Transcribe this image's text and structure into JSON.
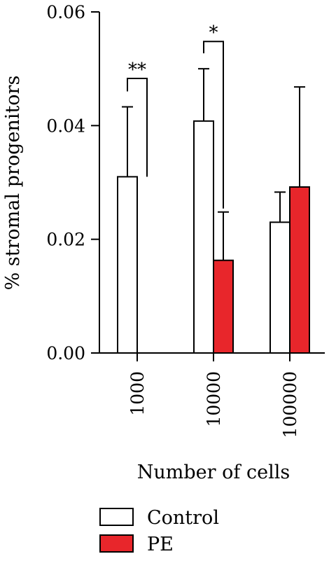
{
  "chart_data": {
    "type": "bar",
    "title": "",
    "xlabel": "Number of cells",
    "ylabel": "% stromal progenitors",
    "categories": [
      "1000",
      "10000",
      "100000"
    ],
    "ylim": [
      0,
      0.06
    ],
    "yticks": [
      "0.00",
      "0.02",
      "0.04",
      "0.06"
    ],
    "yticks_values": [
      0,
      0.02,
      0.04,
      0.06
    ],
    "series": [
      {
        "name": "Control",
        "color": "#ffffff",
        "values": [
          0.031,
          0.0408,
          0.023
        ],
        "errors": [
          0.0123,
          0.0092,
          0.0053
        ]
      },
      {
        "name": "PE",
        "color": "#e8262b",
        "values": [
          null,
          0.0163,
          0.0292
        ],
        "errors": [
          null,
          0.0085,
          0.0176
        ]
      }
    ],
    "significance": [
      {
        "category": "1000",
        "label": "**",
        "y": 0.0483
      },
      {
        "category": "10000",
        "label": "*",
        "y": 0.0548
      }
    ],
    "legend_position": "bottom-left",
    "grid": false
  }
}
